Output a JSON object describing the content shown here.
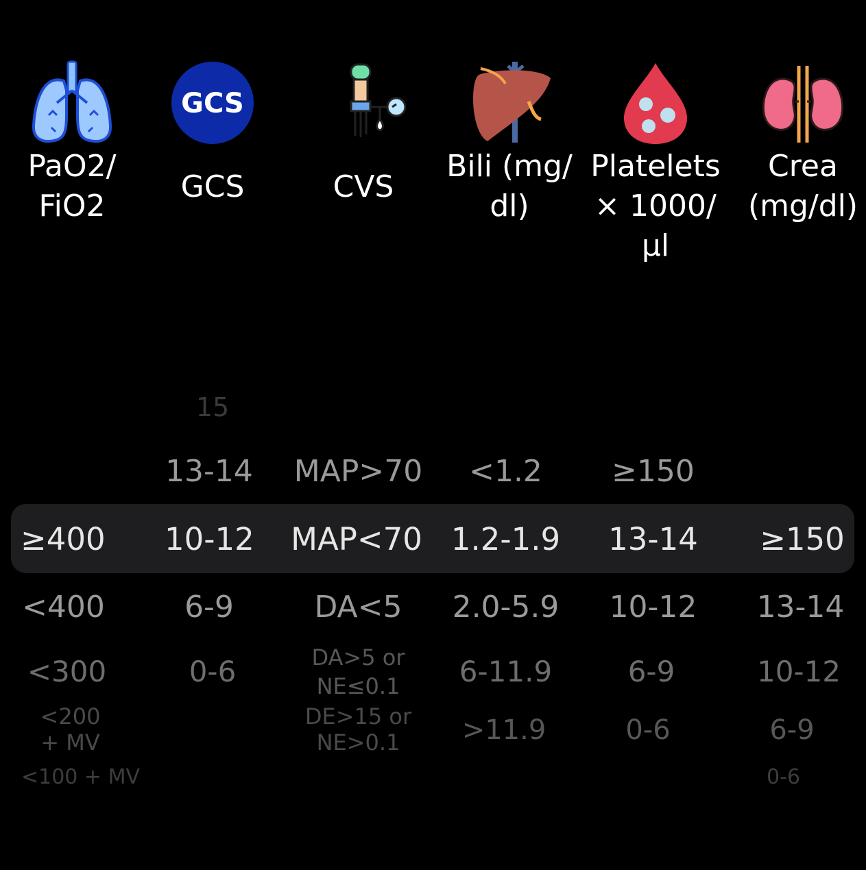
{
  "columns": [
    {
      "icon": "lungs-icon",
      "label": [
        "PaO2/",
        "FiO2"
      ]
    },
    {
      "icon": "gcs-badge-icon",
      "label": [
        "GCS"
      ],
      "badge": "GCS"
    },
    {
      "icon": "blood-pressure-cuff-icon",
      "label": [
        "CVS"
      ]
    },
    {
      "icon": "liver-icon",
      "label": [
        "Bili (mg/",
        "dl)"
      ]
    },
    {
      "icon": "blood-drop-platelets-icon",
      "label": [
        "Platelets",
        "× 1000/µl"
      ]
    },
    {
      "icon": "kidneys-icon",
      "label": [
        "Crea",
        "(mg/dl)"
      ]
    }
  ],
  "picker": {
    "gcs": {
      "above2": "15",
      "above1": "13-14",
      "selected": "10-12",
      "below1": "6-9",
      "below2": "0-6"
    },
    "pao2": {
      "selected": "≥400",
      "below1": "<400",
      "below2": "<300",
      "below3": [
        "<200",
        "+ MV"
      ],
      "below4": "<100 + MV"
    },
    "cvs": {
      "above1": "MAP>70",
      "selected": "MAP<70",
      "below1": "DA<5",
      "below2": [
        "DA>5 or",
        "NE≤0.1"
      ],
      "below3": [
        "DE>15 or",
        "NE>0.1"
      ]
    },
    "bili": {
      "above1": "<1.2",
      "selected": "1.2-1.9",
      "below1": "2.0-5.9",
      "below2": "6-11.9",
      "below3": ">11.9"
    },
    "platelets": {
      "above1": "≥150",
      "selected": "13-14",
      "below1": "10-12",
      "below2": "6-9",
      "below3": "0-6"
    },
    "crea": {
      "selected": "≥150",
      "below1": "13-14",
      "below2": "10-12",
      "below3": "6-9",
      "below4": "0-6"
    }
  },
  "colors": {
    "background": "#000000",
    "highlight": "#1e1e20",
    "lungs": "#9ec9ff",
    "gcs_badge": "#0d2ba8",
    "liver": "#b5554a",
    "drop": "#e23a4e",
    "kidney": "#f06a8a"
  }
}
